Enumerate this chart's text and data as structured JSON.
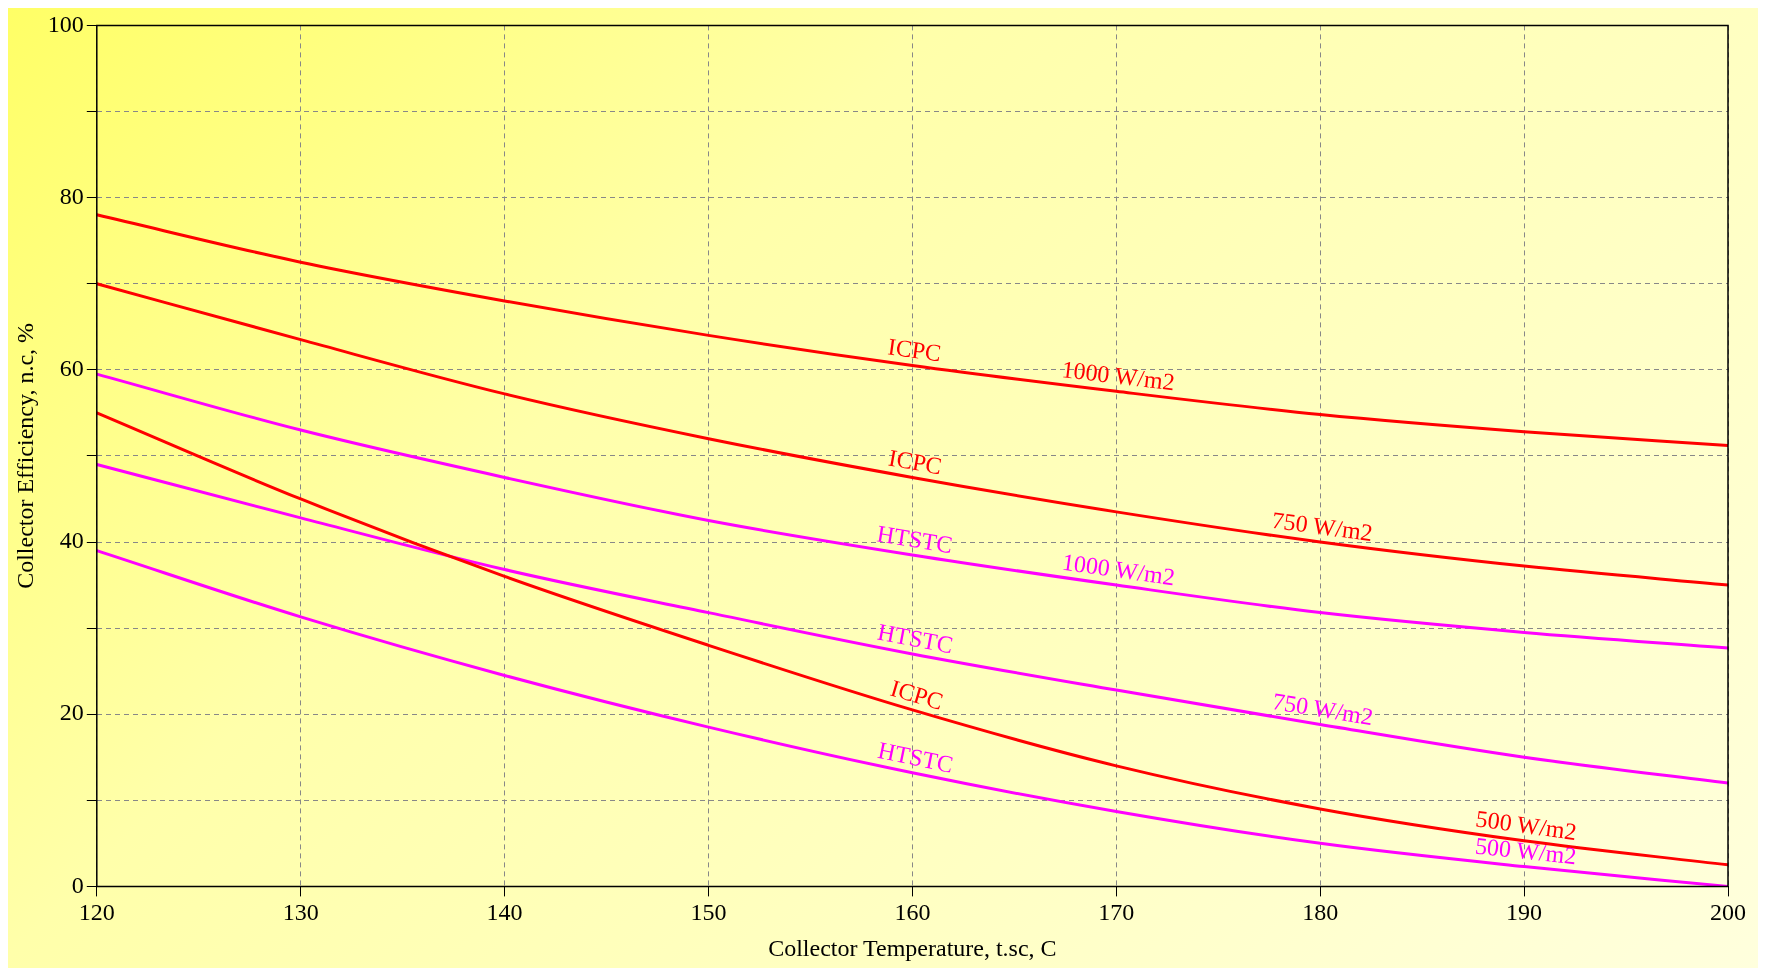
{
  "chart_data": {
    "type": "line",
    "xlabel": "Collector Temperature, t.sc, C",
    "ylabel": "Collector Efficiency, n.c, %",
    "x": [
      120,
      130,
      140,
      150,
      160,
      170,
      180,
      190,
      200
    ],
    "series": [
      {
        "color": "#ff0000",
        "values": [
          78,
          72.5,
          68,
          64,
          60.5,
          57.5,
          54.8,
          52.8,
          51.2
        ]
      },
      {
        "color": "#ff0000",
        "values": [
          70,
          63.5,
          57.2,
          52,
          47.5,
          43.5,
          40,
          37.2,
          35
        ]
      },
      {
        "color": "#ff0000",
        "values": [
          55,
          45,
          36,
          28,
          20.5,
          14,
          9,
          5.3,
          2.5
        ]
      },
      {
        "color": "#ff00ff",
        "values": [
          59.5,
          53,
          47.5,
          42.5,
          38.5,
          35,
          31.8,
          29.5,
          27.7
        ]
      },
      {
        "color": "#ff00ff",
        "values": [
          49,
          42.8,
          36.8,
          31.8,
          27,
          22.8,
          18.8,
          15,
          12
        ]
      },
      {
        "color": "#ff00ff",
        "values": [
          39,
          31.3,
          24.5,
          18.5,
          13.2,
          8.7,
          5,
          2.3,
          0
        ]
      }
    ],
    "annotations": [
      {
        "text": "ICPC",
        "x": 160,
        "y": 60.5
      },
      {
        "text": "1000 W/m2",
        "x": 170,
        "y": 57.5
      },
      {
        "text": "ICPC",
        "x": 160,
        "y": 47.5
      },
      {
        "text": "750 W/m2",
        "x": 180,
        "y": 40
      },
      {
        "text": "ICPC",
        "x": 160,
        "y": 20.5
      },
      {
        "text": "500 W/m2",
        "x": 190,
        "y": 5.3
      },
      {
        "text": "HTSTC",
        "x": 160,
        "y": 38.5
      },
      {
        "text": "1000 W/m2",
        "x": 170,
        "y": 35
      },
      {
        "text": "HTSTC",
        "x": 160,
        "y": 27
      },
      {
        "text": "750 W/m2",
        "x": 180,
        "y": 18.8
      },
      {
        "text": "HTSTC",
        "x": 160,
        "y": 13.2
      },
      {
        "text": "500 W/m2",
        "x": 190,
        "y": 2.3
      }
    ],
    "xlim": [
      120,
      200
    ],
    "xticks": [
      120,
      130,
      140,
      150,
      160,
      170,
      180,
      190,
      200
    ],
    "ylim": [
      0,
      100
    ],
    "yticks": [
      0,
      {
        "value": 10,
        "label": null
      },
      20,
      {
        "value": 30,
        "label": null
      },
      40,
      {
        "value": 50,
        "label": null
      },
      60,
      {
        "value": 70,
        "label": null
      },
      80,
      {
        "value": 90,
        "label": null
      },
      100
    ],
    "grid": true,
    "legend": false,
    "marker": "none",
    "line_style": "solid"
  }
}
